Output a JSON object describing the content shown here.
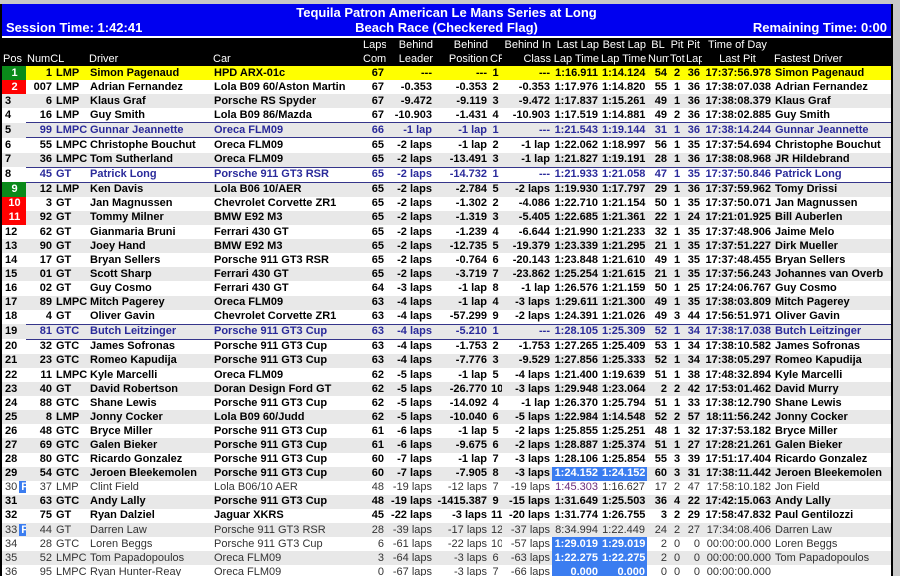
{
  "title": "Tequila Patron American Le Mans Series at Long",
  "subtitle": "Beach Race (Checkered Flag)",
  "session_time": "Session Time: 1:42:41",
  "remaining_time": "Remaining Time: 0:00",
  "colors": {
    "title_bg": "#0000f0",
    "header_bg": "#000000",
    "leader_row": "#ffff00",
    "gain": "#0a8a1a",
    "loss": "#ff0000",
    "highlight": "#3b7df0",
    "class_leader_text": "#2a2a9a"
  },
  "columns": [
    {
      "l1": "",
      "l2": "Pos"
    },
    {
      "l1": "",
      "l2": "NumCL"
    },
    {
      "l1": "",
      "l2": ""
    },
    {
      "l1": "",
      "l2": "Driver"
    },
    {
      "l1": "",
      "l2": "Car"
    },
    {
      "l1": "Laps",
      "l2": "Comp"
    },
    {
      "l1": "Behind",
      "l2": "Leader"
    },
    {
      "l1": "Behind",
      "l2": "Position"
    },
    {
      "l1": "",
      "l2": "CP"
    },
    {
      "l1": "Behind In",
      "l2": "Class"
    },
    {
      "l1": "Last Lap",
      "l2": "Lap Time"
    },
    {
      "l1": "Best Lap",
      "l2": "Lap Time"
    },
    {
      "l1": "BL",
      "l2": "Num"
    },
    {
      "l1": "Pit",
      "l2": "Tot"
    },
    {
      "l1": "Pit",
      "l2": "Lap"
    },
    {
      "l1": "Time of Day",
      "l2": "Last Pit"
    },
    {
      "l1": "",
      "l2": "Fastest Driver"
    }
  ],
  "pit_badge": "P",
  "rows": [
    {
      "cells": [
        "1",
        "1",
        "LMP",
        "Simon Pagenaud",
        "HPD ARX-01c",
        "67",
        "---",
        "---",
        "1",
        "---",
        "1:16.911",
        "1:14.124",
        "54",
        "2",
        "36",
        "17:37:56.978",
        "Simon Pagenaud"
      ],
      "pos_color": "green",
      "first": true
    },
    {
      "cells": [
        "2",
        "007",
        "LMP",
        "Adrian Fernandez",
        "Lola B09 60/Aston Martin",
        "67",
        "-0.353",
        "-0.353",
        "2",
        "-0.353",
        "1:17.976",
        "1:14.820",
        "55",
        "1",
        "36",
        "17:38:07.038",
        "Adrian Fernandez"
      ],
      "pos_color": "red"
    },
    {
      "cells": [
        "3",
        "6",
        "LMP",
        "Klaus Graf",
        "Porsche RS Spyder",
        "67",
        "-9.472",
        "-9.119",
        "3",
        "-9.472",
        "1:17.837",
        "1:15.261",
        "49",
        "1",
        "36",
        "17:38:08.379",
        "Klaus Graf"
      ]
    },
    {
      "cells": [
        "4",
        "16",
        "LMP",
        "Guy Smith",
        "Lola B09 86/Mazda",
        "67",
        "-10.903",
        "-1.431",
        "4",
        "-10.903",
        "1:17.519",
        "1:14.881",
        "49",
        "2",
        "36",
        "17:38:02.885",
        "Guy Smith"
      ]
    },
    {
      "cells": [
        "5",
        "99",
        "LMPC",
        "Gunnar Jeannette",
        "Oreca FLM09",
        "66",
        "-1 lap",
        "-1 lap",
        "1",
        "---",
        "1:21.543",
        "1:19.144",
        "31",
        "1",
        "36",
        "17:38:14.244",
        "Gunnar Jeannette"
      ],
      "class_leader": true
    },
    {
      "cells": [
        "6",
        "55",
        "LMPC",
        "Christophe Bouchut",
        "Oreca FLM09",
        "65",
        "-2 laps",
        "-1 lap",
        "2",
        "-1 lap",
        "1:22.062",
        "1:18.997",
        "56",
        "1",
        "35",
        "17:37:54.694",
        "Christophe Bouchut"
      ]
    },
    {
      "cells": [
        "7",
        "36",
        "LMPC",
        "Tom Sutherland",
        "Oreca FLM09",
        "65",
        "-2 laps",
        "-13.491",
        "3",
        "-1 lap",
        "1:21.827",
        "1:19.191",
        "28",
        "1",
        "36",
        "17:38:08.968",
        "JR Hildebrand"
      ]
    },
    {
      "cells": [
        "8",
        "45",
        "GT",
        "Patrick Long",
        "Porsche 911 GT3 RSR",
        "65",
        "-2 laps",
        "-14.732",
        "1",
        "---",
        "1:21.933",
        "1:21.058",
        "47",
        "1",
        "35",
        "17:37:50.846",
        "Patrick Long"
      ],
      "class_leader": true
    },
    {
      "cells": [
        "9",
        "12",
        "LMP",
        "Ken Davis",
        "Lola B06 10/AER",
        "65",
        "-2 laps",
        "-2.784",
        "5",
        "-2 laps",
        "1:19.930",
        "1:17.797",
        "29",
        "1",
        "36",
        "17:37:59.962",
        "Tomy Drissi"
      ],
      "pos_color": "green"
    },
    {
      "cells": [
        "10",
        "3",
        "GT",
        "Jan Magnussen",
        "Chevrolet Corvette ZR1",
        "65",
        "-2 laps",
        "-1.302",
        "2",
        "-4.086",
        "1:22.710",
        "1:21.154",
        "50",
        "1",
        "35",
        "17:37:50.071",
        "Jan Magnussen"
      ],
      "pos_color": "red"
    },
    {
      "cells": [
        "11",
        "92",
        "GT",
        "Tommy Milner",
        "BMW E92 M3",
        "65",
        "-2 laps",
        "-1.319",
        "3",
        "-5.405",
        "1:22.685",
        "1:21.361",
        "22",
        "1",
        "24",
        "17:21:01.925",
        "Bill Auberlen"
      ],
      "pos_color": "red"
    },
    {
      "cells": [
        "12",
        "62",
        "GT",
        "Gianmaria Bruni",
        "Ferrari 430 GT",
        "65",
        "-2 laps",
        "-1.239",
        "4",
        "-6.644",
        "1:21.990",
        "1:21.233",
        "32",
        "1",
        "35",
        "17:37:48.906",
        "Jaime Melo"
      ]
    },
    {
      "cells": [
        "13",
        "90",
        "GT",
        "Joey Hand",
        "BMW E92 M3",
        "65",
        "-2 laps",
        "-12.735",
        "5",
        "-19.379",
        "1:23.339",
        "1:21.295",
        "21",
        "1",
        "35",
        "17:37:51.227",
        "Dirk Mueller"
      ]
    },
    {
      "cells": [
        "14",
        "17",
        "GT",
        "Bryan Sellers",
        "Porsche 911 GT3 RSR",
        "65",
        "-2 laps",
        "-0.764",
        "6",
        "-20.143",
        "1:23.848",
        "1:21.610",
        "49",
        "1",
        "35",
        "17:37:48.455",
        "Bryan Sellers"
      ]
    },
    {
      "cells": [
        "15",
        "01",
        "GT",
        "Scott Sharp",
        "Ferrari 430 GT",
        "65",
        "-2 laps",
        "-3.719",
        "7",
        "-23.862",
        "1:25.254",
        "1:21.615",
        "21",
        "1",
        "35",
        "17:37:56.243",
        "Johannes van Overb"
      ]
    },
    {
      "cells": [
        "16",
        "02",
        "GT",
        "Guy Cosmo",
        "Ferrari 430 GT",
        "64",
        "-3 laps",
        "-1 lap",
        "8",
        "-1 lap",
        "1:26.576",
        "1:21.159",
        "50",
        "1",
        "25",
        "17:24:06.767",
        "Guy Cosmo"
      ]
    },
    {
      "cells": [
        "17",
        "89",
        "LMPC",
        "Mitch Pagerey",
        "Oreca FLM09",
        "63",
        "-4 laps",
        "-1 lap",
        "4",
        "-3 laps",
        "1:29.611",
        "1:21.300",
        "49",
        "1",
        "35",
        "17:38:03.809",
        "Mitch Pagerey"
      ]
    },
    {
      "cells": [
        "18",
        "4",
        "GT",
        "Oliver Gavin",
        "Chevrolet Corvette ZR1",
        "63",
        "-4 laps",
        "-57.299",
        "9",
        "-2 laps",
        "1:24.391",
        "1:21.026",
        "49",
        "3",
        "44",
        "17:56:51.971",
        "Oliver Gavin"
      ]
    },
    {
      "cells": [
        "19",
        "81",
        "GTC",
        "Butch Leitzinger",
        "Porsche 911 GT3 Cup",
        "63",
        "-4 laps",
        "-5.210",
        "1",
        "---",
        "1:28.105",
        "1:25.309",
        "52",
        "1",
        "34",
        "17:38:17.038",
        "Butch Leitzinger"
      ],
      "class_leader": true
    },
    {
      "cells": [
        "20",
        "32",
        "GTC",
        "James Sofronas",
        "Porsche 911 GT3 Cup",
        "63",
        "-4 laps",
        "-1.753",
        "2",
        "-1.753",
        "1:27.265",
        "1:25.409",
        "53",
        "1",
        "34",
        "17:38:10.582",
        "James Sofronas"
      ]
    },
    {
      "cells": [
        "21",
        "23",
        "GTC",
        "Romeo Kapudija",
        "Porsche 911 GT3 Cup",
        "63",
        "-4 laps",
        "-7.776",
        "3",
        "-9.529",
        "1:27.856",
        "1:25.333",
        "52",
        "1",
        "34",
        "17:38:05.297",
        "Romeo Kapudija"
      ]
    },
    {
      "cells": [
        "22",
        "11",
        "LMPC",
        "Kyle Marcelli",
        "Oreca FLM09",
        "62",
        "-5 laps",
        "-1 lap",
        "5",
        "-4 laps",
        "1:21.400",
        "1:19.639",
        "51",
        "1",
        "38",
        "17:48:32.894",
        "Kyle Marcelli"
      ]
    },
    {
      "cells": [
        "23",
        "40",
        "GT",
        "David Robertson",
        "Doran Design Ford GT",
        "62",
        "-5 laps",
        "-26.770",
        "10",
        "-3 laps",
        "1:29.948",
        "1:23.064",
        "2",
        "2",
        "42",
        "17:53:01.462",
        "David Murry"
      ]
    },
    {
      "cells": [
        "24",
        "88",
        "GTC",
        "Shane Lewis",
        "Porsche 911 GT3 Cup",
        "62",
        "-5 laps",
        "-14.092",
        "4",
        "-1 lap",
        "1:26.370",
        "1:25.794",
        "51",
        "1",
        "33",
        "17:38:12.790",
        "Shane Lewis"
      ]
    },
    {
      "cells": [
        "25",
        "8",
        "LMP",
        "Jonny Cocker",
        "Lola B09 60/Judd",
        "62",
        "-5 laps",
        "-10.040",
        "6",
        "-5 laps",
        "1:22.984",
        "1:14.548",
        "52",
        "2",
        "57",
        "18:11:56.242",
        "Jonny Cocker"
      ]
    },
    {
      "cells": [
        "26",
        "48",
        "GTC",
        "Bryce Miller",
        "Porsche 911 GT3 Cup",
        "61",
        "-6 laps",
        "-1 lap",
        "5",
        "-2 laps",
        "1:25.855",
        "1:25.251",
        "48",
        "1",
        "32",
        "17:37:53.182",
        "Bryce Miller"
      ]
    },
    {
      "cells": [
        "27",
        "69",
        "GTC",
        "Galen Bieker",
        "Porsche 911 GT3 Cup",
        "61",
        "-6 laps",
        "-9.675",
        "6",
        "-2 laps",
        "1:28.887",
        "1:25.374",
        "51",
        "1",
        "27",
        "17:28:21.261",
        "Galen Bieker"
      ]
    },
    {
      "cells": [
        "28",
        "80",
        "GTC",
        "Ricardo Gonzalez",
        "Porsche 911 GT3 Cup",
        "60",
        "-7 laps",
        "-1 lap",
        "7",
        "-3 laps",
        "1:28.106",
        "1:25.854",
        "55",
        "3",
        "39",
        "17:51:17.404",
        "Ricardo Gonzalez"
      ]
    },
    {
      "cells": [
        "29",
        "54",
        "GTC",
        "Jeroen Bleekemolen",
        "Porsche 911 GT3 Cup",
        "60",
        "-7 laps",
        "-7.905",
        "8",
        "-3 laps",
        "1:24.152",
        "1:24.152",
        "60",
        "3",
        "31",
        "17:38:11.442",
        "Jeroen Bleekemolen"
      ],
      "highlight_laps": true
    },
    {
      "cells": [
        "30",
        "37",
        "LMP",
        "Clint Field",
        "Lola B06/10 AER",
        "48",
        "-19 laps",
        "-12 laps",
        "7",
        "-19 laps",
        "1:45.303",
        "1:16.627",
        "17",
        "2",
        "47",
        "17:58:10.182",
        "Jon Field"
      ],
      "in_pit": true,
      "inactive": true
    },
    {
      "cells": [
        "31",
        "63",
        "GTC",
        "Andy Lally",
        "Porsche 911 GT3 Cup",
        "48",
        "-19 laps",
        "-1415.387",
        "9",
        "-15 laps",
        "1:31.649",
        "1:25.503",
        "36",
        "4",
        "22",
        "17:42:15.063",
        "Andy Lally"
      ]
    },
    {
      "cells": [
        "32",
        "75",
        "GT",
        "Ryan Dalziel",
        "Jaguar XKRS",
        "45",
        "-22 laps",
        "-3 laps",
        "11",
        "-20 laps",
        "1:31.774",
        "1:26.755",
        "3",
        "2",
        "29",
        "17:58:47.832",
        "Paul Gentilozzi"
      ]
    },
    {
      "cells": [
        "33",
        "44",
        "GT",
        "Darren Law",
        "Porsche 911 GT3 RSR",
        "28",
        "-39 laps",
        "-17 laps",
        "12",
        "-37 laps",
        "8:34.994",
        "1:22.449",
        "24",
        "2",
        "27",
        "17:34:08.406",
        "Darren Law"
      ],
      "in_pit": true,
      "inactive": true
    },
    {
      "cells": [
        "34",
        "28",
        "GTC",
        "Loren Beggs",
        "Porsche 911 GT3 Cup",
        "6",
        "-61 laps",
        "-22 laps",
        "10",
        "-57 laps",
        "1:29.019",
        "1:29.019",
        "2",
        "0",
        "0",
        "00:00:00.000",
        "Loren Beggs"
      ],
      "inactive": true,
      "highlight_laps": true
    },
    {
      "cells": [
        "35",
        "52",
        "LMPC",
        "Tom Papadopoulos",
        "Oreca FLM09",
        "3",
        "-64 laps",
        "-3 laps",
        "6",
        "-63 laps",
        "1:22.275",
        "1:22.275",
        "2",
        "0",
        "0",
        "00:00:00.000",
        "Tom Papadopoulos"
      ],
      "inactive": true,
      "highlight_laps": true
    },
    {
      "cells": [
        "36",
        "95",
        "LMPC",
        "Ryan Hunter-Reay",
        "Oreca FLM09",
        "0",
        "-67 laps",
        "-3 laps",
        "7",
        "-66 laps",
        "0.000",
        "0.000",
        "0",
        "0",
        "0",
        "00:00:00.000",
        ""
      ],
      "inactive": true,
      "highlight_laps": true
    }
  ]
}
